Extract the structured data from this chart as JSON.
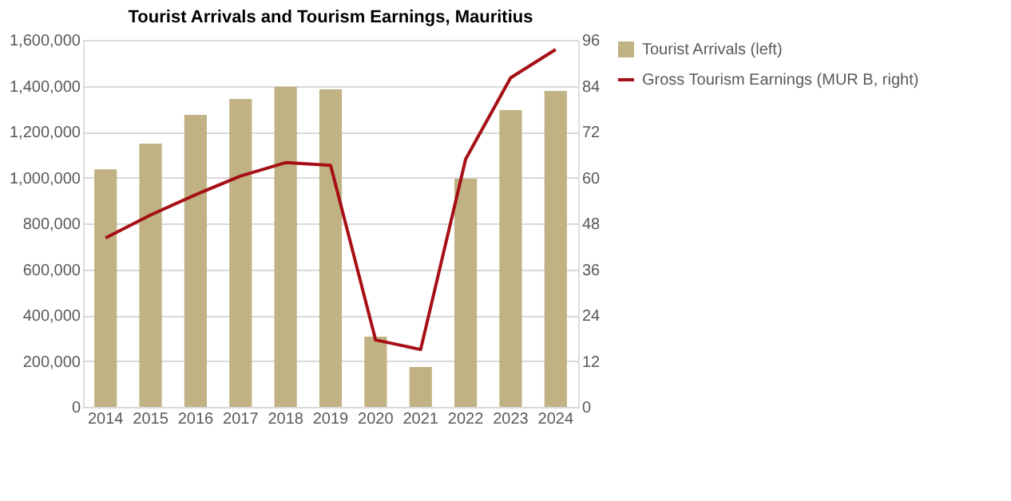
{
  "chart_data": {
    "type": "bar",
    "title": "Tourist Arrivals and Tourism Earnings, Mauritius",
    "categories": [
      "2014",
      "2015",
      "2016",
      "2017",
      "2018",
      "2019",
      "2020",
      "2021",
      "2022",
      "2023",
      "2024"
    ],
    "series": [
      {
        "name": "Tourist Arrivals (left)",
        "color": "#c0b283",
        "values": [
          1036000,
          1148000,
          1273000,
          1343000,
          1396000,
          1384000,
          306000,
          174000,
          995000,
          1294000,
          1377000
        ]
      },
      {
        "name": "Gross Tourism Earnings (MUR B, right)",
        "type": "line",
        "axis": "y2",
        "color": "#a50f15",
        "values": [
          44.2,
          50.2,
          55.5,
          60.4,
          63.9,
          63.2,
          17.5,
          15.0,
          64.8,
          86.1,
          93.5
        ]
      }
    ],
    "ylim": [
      0,
      1600000
    ],
    "yticks": [
      {
        "value": 0,
        "label": "0"
      },
      {
        "value": 200000,
        "label": "200,000"
      },
      {
        "value": 400000,
        "label": "400,000"
      },
      {
        "value": 600000,
        "label": "600,000"
      },
      {
        "value": 800000,
        "label": "800,000"
      },
      {
        "value": 1000000,
        "label": "1,000,000"
      },
      {
        "value": 1200000,
        "label": "1,200,000"
      },
      {
        "value": 1400000,
        "label": "1,400,000"
      },
      {
        "value": 1600000,
        "label": "1,600,000"
      }
    ],
    "y2lim": [
      0,
      96
    ],
    "y2ticks": [
      0,
      12,
      24,
      36,
      48,
      60,
      72,
      84,
      96
    ],
    "grid": "y",
    "legend": "right",
    "marker": "none",
    "line_style": "solid"
  }
}
